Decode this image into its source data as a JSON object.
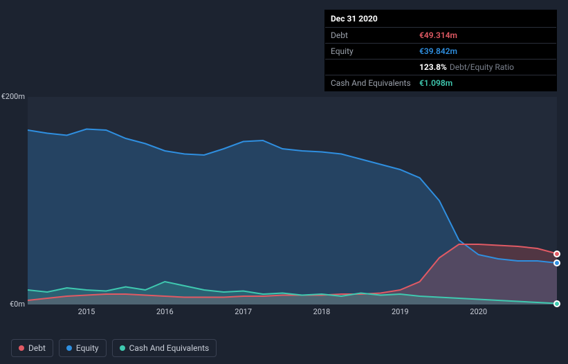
{
  "tooltip": {
    "date": "Dec 31 2020",
    "rows": [
      {
        "label": "Debt",
        "value": "€49.314m",
        "color": "#e15a64"
      },
      {
        "label": "Equity",
        "value": "€39.842m",
        "color": "#2f8fe0"
      },
      {
        "label": "",
        "pct": "123.8%",
        "txt": "Debt/Equity Ratio"
      },
      {
        "label": "Cash And Equivalents",
        "value": "€1.098m",
        "color": "#3fc9b0"
      }
    ]
  },
  "chart": {
    "background_color": "#1c2330",
    "plot_background": "#222a39",
    "y_axis": {
      "min": 0,
      "max": 200,
      "ticks": [
        {
          "v": 200,
          "label": "€200m"
        },
        {
          "v": 0,
          "label": "€0m"
        }
      ],
      "label_color": "#c9ced8",
      "label_fontsize": 11
    },
    "x_axis": {
      "min": 2014.25,
      "max": 2021.0,
      "ticks": [
        2015,
        2016,
        2017,
        2018,
        2019,
        2020
      ],
      "label_color": "#c9ced8",
      "label_fontsize": 11
    },
    "series": [
      {
        "name": "Equity",
        "color": "#2f8fe0",
        "fill": "rgba(47,143,224,0.25)",
        "line_width": 2,
        "x": [
          2014.25,
          2014.5,
          2014.75,
          2015.0,
          2015.25,
          2015.5,
          2015.75,
          2016.0,
          2016.25,
          2016.5,
          2016.75,
          2017.0,
          2017.25,
          2017.5,
          2017.75,
          2018.0,
          2018.25,
          2018.5,
          2018.75,
          2019.0,
          2019.25,
          2019.5,
          2019.75,
          2020.0,
          2020.25,
          2020.5,
          2020.75,
          2021.0
        ],
        "y": [
          168,
          165,
          163,
          169,
          168,
          160,
          155,
          148,
          145,
          144,
          150,
          157,
          158,
          150,
          148,
          147,
          145,
          140,
          135,
          130,
          122,
          100,
          62,
          48,
          44,
          42,
          42,
          40
        ]
      },
      {
        "name": "Debt",
        "color": "#e15a64",
        "fill": "rgba(225,90,100,0.25)",
        "line_width": 2,
        "x": [
          2014.25,
          2014.5,
          2014.75,
          2015.0,
          2015.25,
          2015.5,
          2015.75,
          2016.0,
          2016.25,
          2016.5,
          2016.75,
          2017.0,
          2017.25,
          2017.5,
          2017.75,
          2018.0,
          2018.25,
          2018.5,
          2018.75,
          2019.0,
          2019.25,
          2019.5,
          2019.75,
          2020.0,
          2020.25,
          2020.5,
          2020.75,
          2021.0
        ],
        "y": [
          4,
          6,
          8,
          9,
          10,
          10,
          9,
          8,
          7,
          7,
          7,
          8,
          8,
          9,
          9,
          9,
          10,
          10,
          11,
          14,
          22,
          45,
          58,
          58,
          57,
          56,
          54,
          49
        ]
      },
      {
        "name": "Cash And Equivalents",
        "color": "#3fc9b0",
        "fill": "rgba(63,201,176,0.22)",
        "line_width": 2,
        "x": [
          2014.25,
          2014.5,
          2014.75,
          2015.0,
          2015.25,
          2015.5,
          2015.75,
          2016.0,
          2016.25,
          2016.5,
          2016.75,
          2017.0,
          2017.25,
          2017.5,
          2017.75,
          2018.0,
          2018.25,
          2018.5,
          2018.75,
          2019.0,
          2019.25,
          2019.5,
          2019.75,
          2020.0,
          2020.25,
          2020.5,
          2020.75,
          2021.0
        ],
        "y": [
          14,
          12,
          16,
          14,
          13,
          17,
          14,
          22,
          18,
          14,
          12,
          13,
          10,
          11,
          9,
          10,
          8,
          11,
          9,
          10,
          8,
          7,
          6,
          5,
          4,
          3,
          2,
          1
        ]
      }
    ],
    "end_markers": [
      {
        "series": "Debt",
        "x": 2021.0,
        "y": 49,
        "color": "#e15a64"
      },
      {
        "series": "Equity",
        "x": 2021.0,
        "y": 40,
        "color": "#2f8fe0"
      },
      {
        "series": "Cash And Equivalents",
        "x": 2021.0,
        "y": 1,
        "color": "#3fc9b0"
      }
    ]
  },
  "legend": {
    "items": [
      {
        "label": "Debt",
        "color": "#e15a64"
      },
      {
        "label": "Equity",
        "color": "#2f8fe0"
      },
      {
        "label": "Cash And Equivalents",
        "color": "#3fc9b0"
      }
    ],
    "border_color": "#3a4152",
    "text_color": "#c9ced8",
    "fontsize": 12
  }
}
